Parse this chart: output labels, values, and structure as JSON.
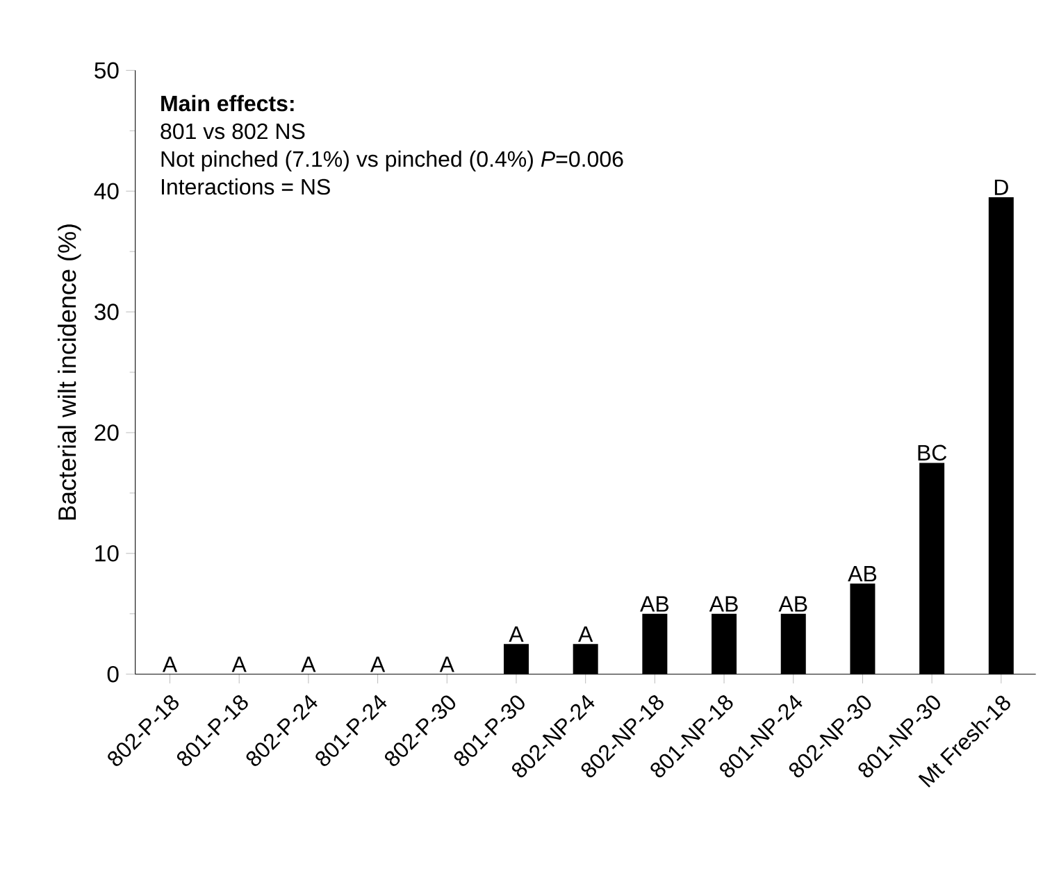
{
  "chart_data": {
    "type": "bar",
    "ylabel": "Bacterial wilt incidence (%)",
    "categories": [
      "802-P-18",
      "801-P-18",
      "802-P-24",
      "801-P-24",
      "802-P-30",
      "801-P-30",
      "802-NP-24",
      "802-NP-18",
      "801-NP-18",
      "801-NP-24",
      "802-NP-30",
      "801-NP-30",
      "Mt Fresh-18"
    ],
    "values": [
      0,
      0,
      0,
      0,
      0,
      2.5,
      2.5,
      5,
      5,
      5,
      7.5,
      17.5,
      39.5
    ],
    "color": "#000000",
    "ylim": [
      0,
      50
    ],
    "yticks": [
      0,
      10,
      20,
      30,
      40,
      50
    ],
    "grid": false,
    "annotations": [
      "**Main effects:**",
      "801 vs 802 NS",
      "Not pinched (7.1%) vs pinched (0.4%) *P*=0.006",
      "Interactions = NS",
      {
        "text": "A",
        "x": "802-P-18",
        "y": 0
      },
      {
        "text": "A",
        "x": "801-P-18",
        "y": 0
      },
      {
        "text": "A",
        "x": "802-P-24",
        "y": 0
      },
      {
        "text": "A",
        "x": "801-P-24",
        "y": 0
      },
      {
        "text": "A",
        "x": "802-P-30",
        "y": 0
      },
      {
        "text": "A",
        "x": "801-P-30",
        "y": 2.5
      },
      {
        "text": "A",
        "x": "802-NP-24",
        "y": 2.5
      },
      {
        "text": "AB",
        "x": "802-NP-18",
        "y": 5
      },
      {
        "text": "AB",
        "x": "801-NP-18",
        "y": 5
      },
      {
        "text": "AB",
        "x": "801-NP-24",
        "y": 5
      },
      {
        "text": "AB",
        "x": "802-NP-30",
        "y": 7.5
      },
      {
        "text": "BC",
        "x": "801-NP-30",
        "y": 17.5
      },
      {
        "text": "D",
        "x": "Mt Fresh-18",
        "y": 39.5
      }
    ]
  }
}
